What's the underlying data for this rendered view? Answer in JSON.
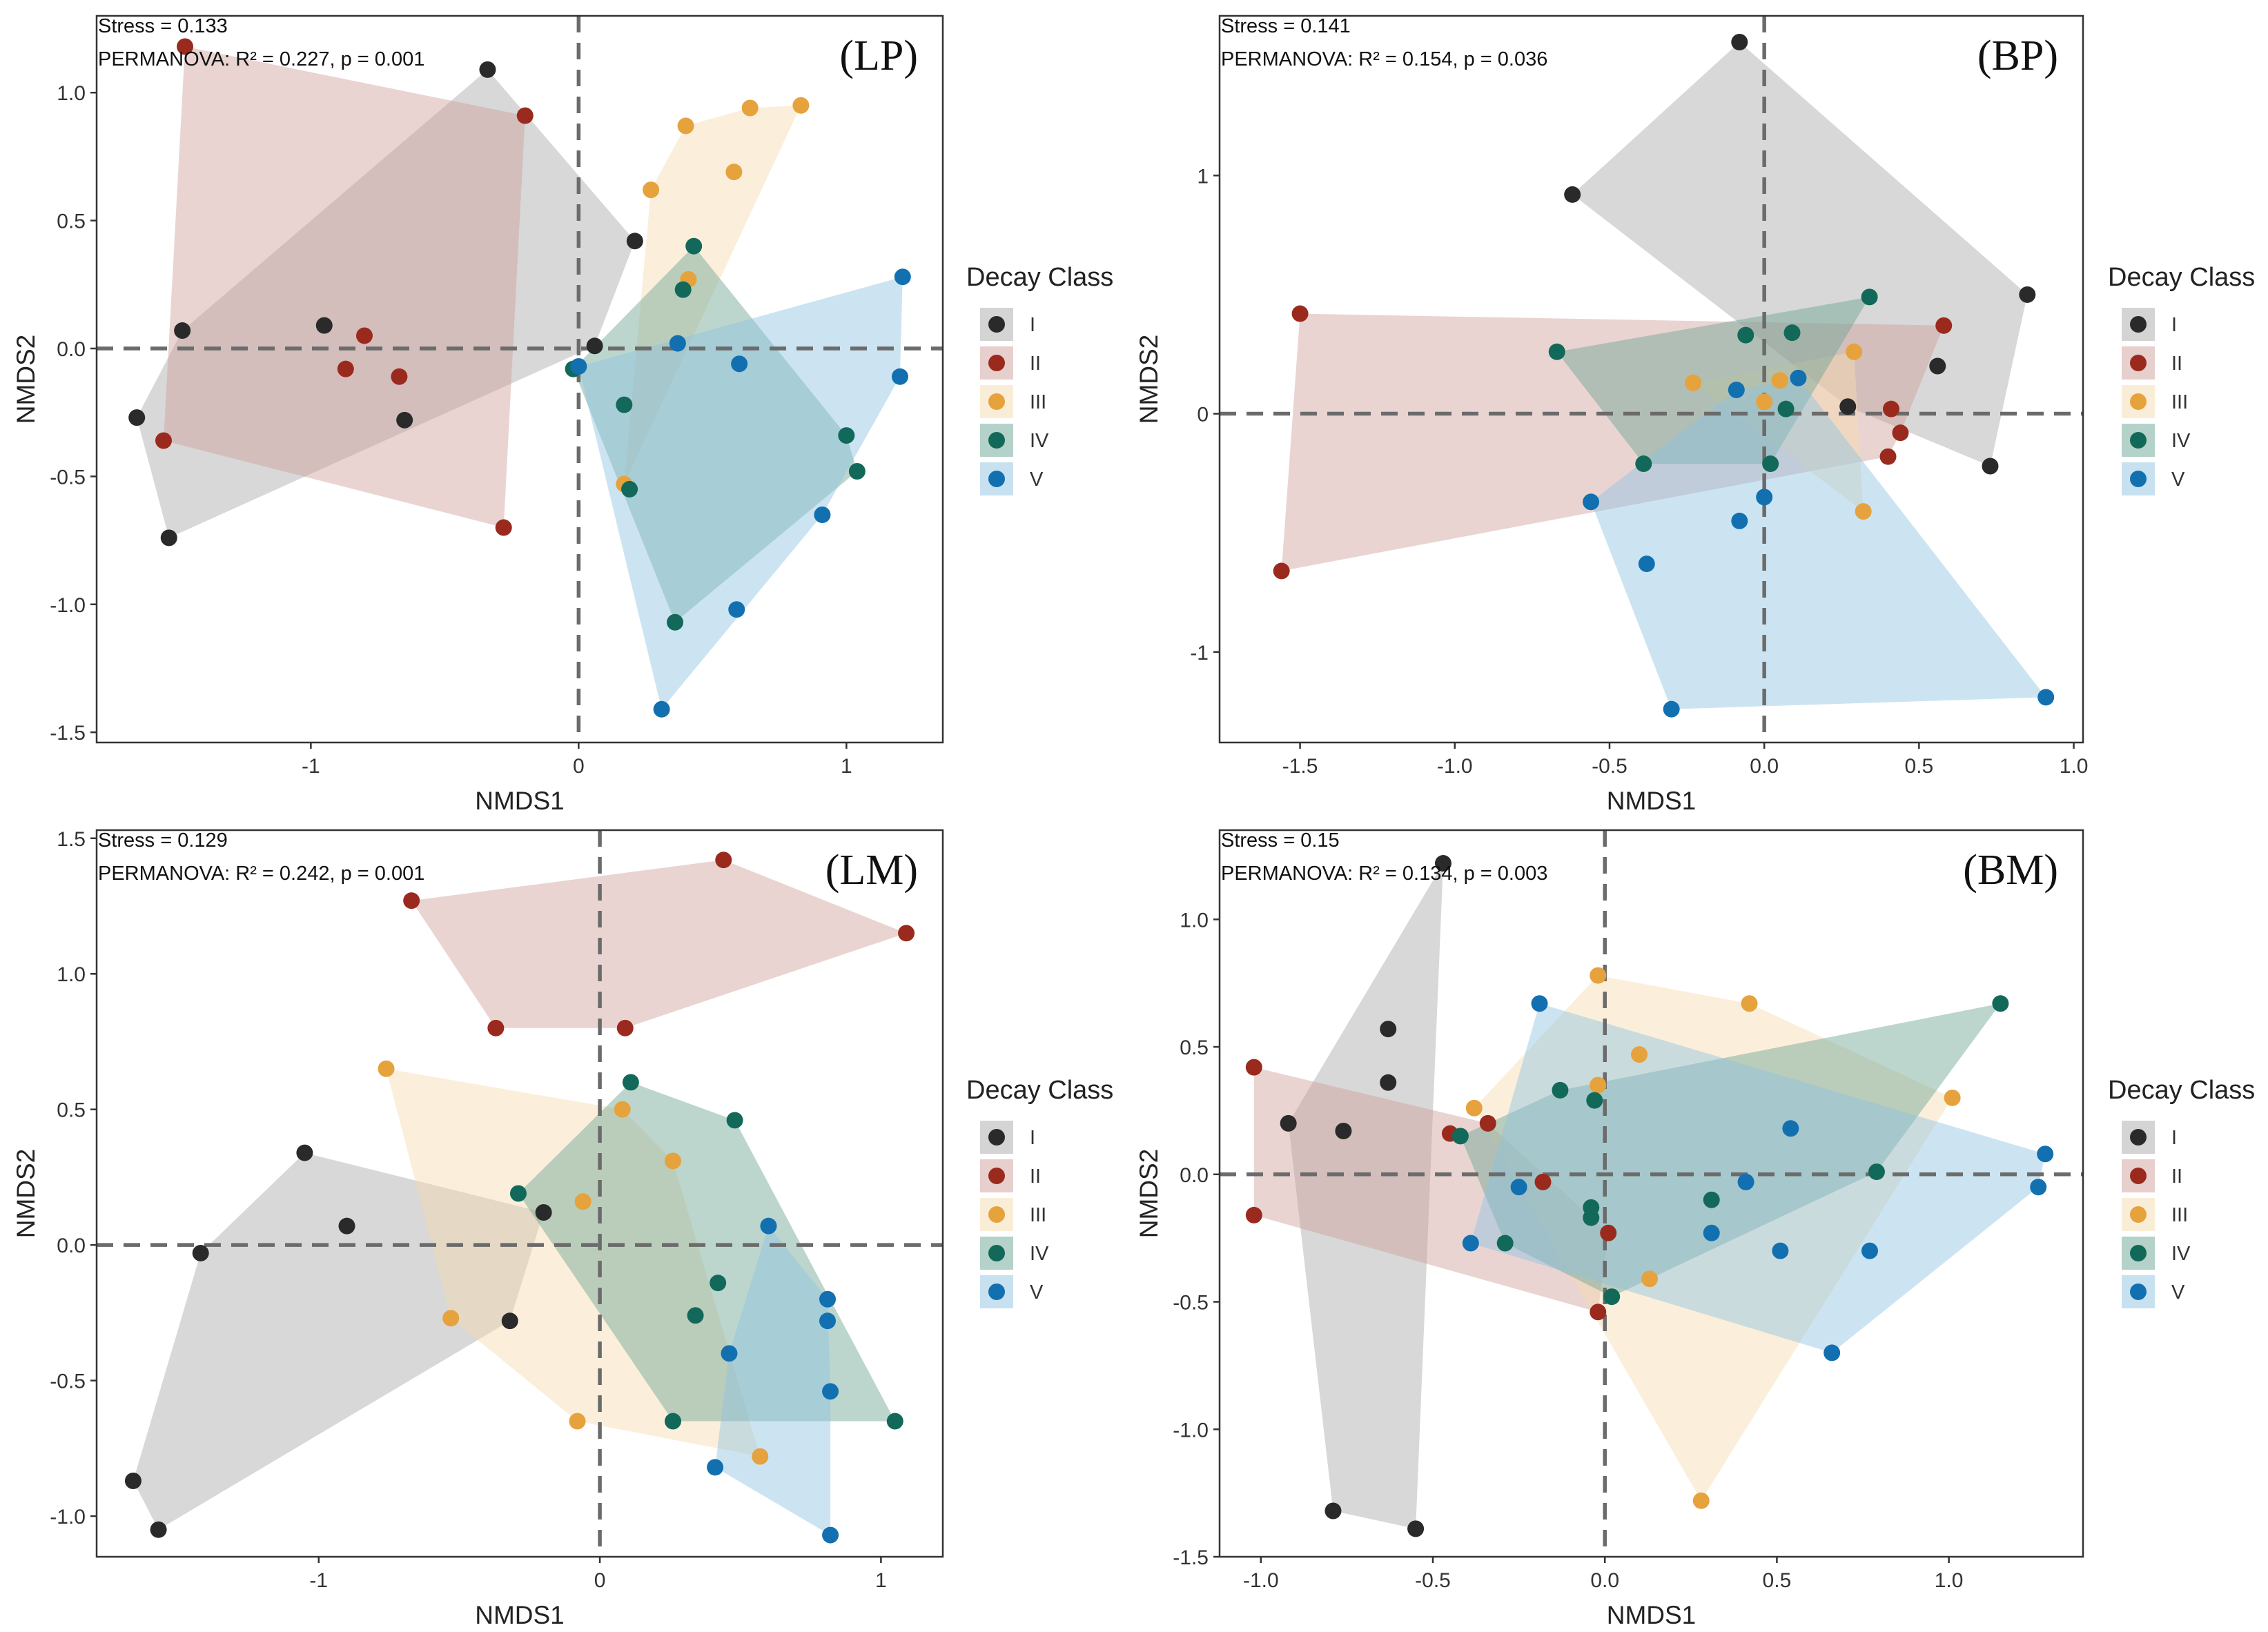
{
  "figure": {
    "legend_title": "Decay Class",
    "classes": [
      "I",
      "II",
      "III",
      "IV",
      "V"
    ],
    "colors": [
      "#2a2a2a",
      "#9b2a1e",
      "#e6a23c",
      "#12695a",
      "#1270b0"
    ],
    "hull_colors": [
      "#a9a9a9",
      "#cf9f9b",
      "#f6dbb0",
      "#6aa593",
      "#8fc4e2"
    ]
  },
  "chart_data": [
    {
      "type": "scatter",
      "tag": "(LP)",
      "stress_label": "Stress = 0.133",
      "permanova_label": "PERMANOVA: R² = 0.227, p = 0.001",
      "xlabel": "NMDS1",
      "ylabel": "NMDS2",
      "xlim": [
        -1.8,
        1.36
      ],
      "ylim": [
        -1.54,
        1.3
      ],
      "xticks": [
        -1,
        0,
        1
      ],
      "xticklabels": [
        "-1",
        "0",
        "1"
      ],
      "yticks": [
        -1.5,
        -1.0,
        -0.5,
        0.0,
        0.5,
        1.0
      ],
      "yticklabels": [
        "-1.5",
        "-1.0",
        "-0.5",
        "0.0",
        "0.5",
        "1.0"
      ],
      "series": [
        {
          "name": "I",
          "x": [
            -0.34,
            0.21,
            0.06,
            -0.95,
            -1.48,
            -1.65,
            -1.53,
            -0.65
          ],
          "y": [
            1.09,
            0.42,
            0.01,
            0.09,
            0.07,
            -0.27,
            -0.74,
            -0.28
          ]
        },
        {
          "name": "II",
          "x": [
            -1.47,
            -0.2,
            -0.8,
            -0.87,
            -0.67,
            -1.55,
            -0.28
          ],
          "y": [
            1.18,
            0.91,
            0.05,
            -0.08,
            -0.11,
            -0.36,
            -0.7
          ]
        },
        {
          "name": "III",
          "x": [
            0.4,
            0.64,
            0.83,
            0.58,
            0.27,
            0.41,
            0.17
          ],
          "y": [
            0.87,
            0.94,
            0.95,
            0.69,
            0.62,
            0.27,
            -0.53
          ]
        },
        {
          "name": "IV",
          "x": [
            0.43,
            0.39,
            -0.02,
            0.17,
            0.19,
            1.0,
            1.04,
            0.36
          ],
          "y": [
            0.4,
            0.23,
            -0.08,
            -0.22,
            -0.55,
            -0.34,
            -0.48,
            -1.07
          ]
        },
        {
          "name": "V",
          "x": [
            1.21,
            0.37,
            0.6,
            -0.0,
            1.2,
            0.91,
            0.59,
            0.31
          ],
          "y": [
            0.28,
            0.02,
            -0.06,
            -0.07,
            -0.11,
            -0.65,
            -1.02,
            -1.41
          ]
        }
      ]
    },
    {
      "type": "scatter",
      "tag": "(BP)",
      "stress_label": "Stress = 0.141",
      "permanova_label": "PERMANOVA: R² = 0.154, p = 0.036",
      "xlabel": "NMDS1",
      "ylabel": "NMDS2",
      "xlim": [
        -1.76,
        1.03
      ],
      "ylim": [
        -1.38,
        1.67
      ],
      "xticks": [
        -1.5,
        -1.0,
        -0.5,
        0.0,
        0.5,
        1.0
      ],
      "xticklabels": [
        "-1.5",
        "-1.0",
        "-0.5",
        "0.0",
        "0.5",
        "1.0"
      ],
      "yticks": [
        -1,
        0,
        1
      ],
      "yticklabels": [
        "-1",
        "0",
        "1"
      ],
      "series": [
        {
          "name": "I",
          "x": [
            -0.08,
            -0.62,
            0.85,
            0.56,
            0.27,
            0.73
          ],
          "y": [
            1.56,
            0.92,
            0.5,
            0.2,
            0.03,
            -0.22
          ]
        },
        {
          "name": "II",
          "x": [
            -1.5,
            0.58,
            0.41,
            0.44,
            0.4,
            -1.56
          ],
          "y": [
            0.42,
            0.37,
            0.02,
            -0.08,
            -0.18,
            -0.66
          ]
        },
        {
          "name": "III",
          "x": [
            0.29,
            -0.23,
            0.05,
            0.0,
            0.32
          ],
          "y": [
            0.26,
            0.13,
            0.14,
            0.05,
            -0.41
          ]
        },
        {
          "name": "IV",
          "x": [
            -0.67,
            0.34,
            -0.06,
            0.09,
            0.07,
            -0.39,
            0.02
          ],
          "y": [
            0.26,
            0.49,
            0.33,
            0.34,
            0.02,
            -0.21,
            -0.21
          ]
        },
        {
          "name": "V",
          "x": [
            -0.09,
            0.11,
            -0.56,
            0.0,
            -0.08,
            -0.38,
            -0.3,
            0.91
          ],
          "y": [
            0.1,
            0.15,
            -0.37,
            -0.35,
            -0.45,
            -0.63,
            -1.24,
            -1.19
          ]
        }
      ]
    },
    {
      "type": "scatter",
      "tag": "(LM)",
      "stress_label": "Stress = 0.129",
      "permanova_label": "PERMANOVA: R² = 0.242, p = 0.001",
      "xlabel": "NMDS1",
      "ylabel": "NMDS2",
      "xlim": [
        -1.79,
        1.22
      ],
      "ylim": [
        -1.15,
        1.53
      ],
      "xticks": [
        -1,
        0,
        1
      ],
      "xticklabels": [
        "-1",
        "0",
        "1"
      ],
      "yticks": [
        -1.0,
        -0.5,
        0.0,
        0.5,
        1.0,
        1.5
      ],
      "yticklabels": [
        "-1.0",
        "-0.5",
        "0.0",
        "0.5",
        "1.0",
        "1.5"
      ],
      "series": [
        {
          "name": "I",
          "x": [
            -1.05,
            -0.9,
            -1.42,
            -0.2,
            -0.32,
            -1.66,
            -1.57
          ],
          "y": [
            0.34,
            0.07,
            -0.03,
            0.12,
            -0.28,
            -0.87,
            -1.05
          ]
        },
        {
          "name": "II",
          "x": [
            -0.67,
            0.44,
            1.09,
            -0.37,
            0.09
          ],
          "y": [
            1.27,
            1.42,
            1.15,
            0.8,
            0.8
          ]
        },
        {
          "name": "III",
          "x": [
            -0.76,
            0.08,
            0.26,
            -0.06,
            -0.53,
            0.57,
            -0.08
          ],
          "y": [
            0.65,
            0.5,
            0.31,
            0.16,
            -0.27,
            -0.78,
            -0.65
          ]
        },
        {
          "name": "IV",
          "x": [
            0.11,
            0.48,
            -0.29,
            0.42,
            0.34,
            0.26,
            1.05
          ],
          "y": [
            0.6,
            0.46,
            0.19,
            -0.14,
            -0.26,
            -0.65,
            -0.65
          ]
        },
        {
          "name": "V",
          "x": [
            0.6,
            0.81,
            0.81,
            0.46,
            0.82,
            0.41,
            0.82
          ],
          "y": [
            0.07,
            -0.2,
            -0.28,
            -0.4,
            -0.54,
            -0.82,
            -1.07
          ]
        }
      ]
    },
    {
      "type": "scatter",
      "tag": "(BM)",
      "stress_label": "Stress = 0.15",
      "permanova_label": "PERMANOVA: R² = 0.134, p = 0.003",
      "xlabel": "NMDS1",
      "ylabel": "NMDS2",
      "xlim": [
        -1.12,
        1.39
      ],
      "ylim": [
        -1.5,
        1.35
      ],
      "xticks": [
        -1.0,
        -0.5,
        0.0,
        0.5,
        1.0
      ],
      "xticklabels": [
        "-1.0",
        "-0.5",
        "0.0",
        "0.5",
        "1.0"
      ],
      "yticks": [
        -1.5,
        -1.0,
        -0.5,
        0.0,
        0.5,
        1.0
      ],
      "yticklabels": [
        "-1.5",
        "-1.0",
        "-0.5",
        "0.0",
        "0.5",
        "1.0"
      ],
      "series": [
        {
          "name": "I",
          "x": [
            -0.47,
            -0.63,
            -0.63,
            -0.92,
            -0.76,
            -0.79,
            -0.55
          ],
          "y": [
            1.22,
            0.57,
            0.36,
            0.2,
            0.17,
            -1.32,
            -1.39
          ]
        },
        {
          "name": "II",
          "x": [
            -1.02,
            -0.45,
            -0.34,
            -0.18,
            0.01,
            -0.02,
            -1.02
          ],
          "y": [
            0.42,
            0.16,
            0.2,
            -0.03,
            -0.23,
            -0.54,
            -0.16
          ]
        },
        {
          "name": "III",
          "x": [
            -0.02,
            0.42,
            1.01,
            0.1,
            -0.38,
            -0.02,
            0.13,
            0.28
          ],
          "y": [
            0.78,
            0.67,
            0.3,
            0.47,
            0.26,
            0.35,
            -0.41,
            -1.28
          ]
        },
        {
          "name": "IV",
          "x": [
            1.15,
            -0.13,
            -0.03,
            -0.42,
            0.31,
            0.79,
            -0.04,
            -0.04,
            0.02,
            -0.29
          ],
          "y": [
            0.67,
            0.33,
            0.29,
            0.15,
            -0.1,
            0.01,
            -0.13,
            -0.17,
            -0.48,
            -0.27
          ]
        },
        {
          "name": "V",
          "x": [
            -0.19,
            0.54,
            1.28,
            0.41,
            1.26,
            -0.39,
            -0.25,
            0.31,
            0.51,
            0.77,
            0.66
          ],
          "y": [
            0.67,
            0.18,
            0.08,
            -0.03,
            -0.05,
            -0.27,
            -0.05,
            -0.23,
            -0.3,
            -0.3,
            -0.7
          ]
        }
      ]
    }
  ]
}
